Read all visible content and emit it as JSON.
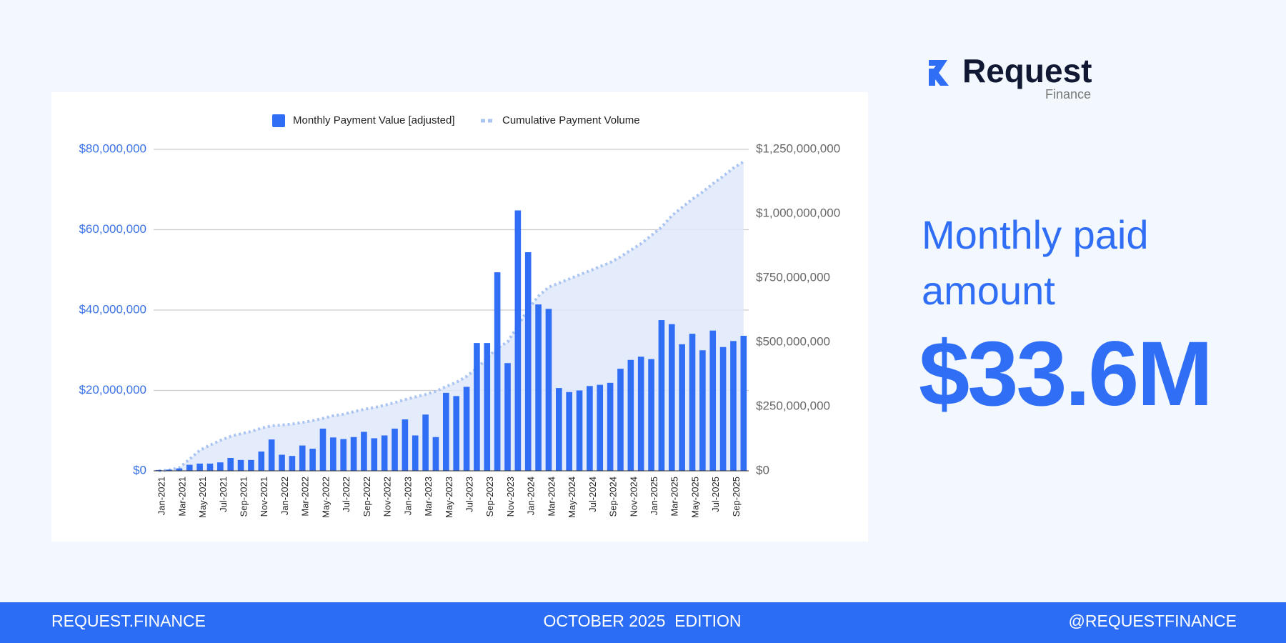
{
  "header": {
    "logo": "Request",
    "logo_sub": "Finance"
  },
  "headline": {
    "label": "Monthly paid amount",
    "value": "$33.6M"
  },
  "footer": {
    "left": "REQUEST.FINANCE",
    "center": "OCTOBER 2025  EDITION",
    "right": "@REQUESTFINANCE"
  },
  "chart_data": {
    "type": "bar",
    "categories": [
      "Jan-2021",
      null,
      "Mar-2021",
      null,
      "May-2021",
      null,
      "Jul-2021",
      null,
      "Sep-2021",
      null,
      "Nov-2021",
      null,
      "Jan-2022",
      null,
      "Mar-2022",
      null,
      "May-2022",
      null,
      "Jul-2022",
      null,
      "Sep-2022",
      null,
      "Nov-2022",
      null,
      "Jan-2023",
      null,
      "Mar-2023",
      null,
      "May-2023",
      null,
      "Jul-2023",
      null,
      "Sep-2023",
      null,
      "Nov-2023",
      null,
      "Jan-2024",
      null,
      "Mar-2024",
      null,
      "May-2024",
      null,
      "Jul-2024",
      null,
      "Sep-2024",
      null,
      "Nov-2024",
      null,
      "Jan-2025",
      null,
      "Mar-2025",
      null,
      "May-2025",
      null,
      "Jul-2025",
      null,
      "Sep-2025",
      null
    ],
    "series": [
      {
        "name": "Monthly Payment Value [adjusted]",
        "color": "#2f6ef5",
        "values": [
          200000,
          300000,
          600000,
          1500000,
          1800000,
          1800000,
          2100000,
          3200000,
          2700000,
          2700000,
          4800000,
          7800000,
          4000000,
          3700000,
          6300000,
          5500000,
          10500000,
          8300000,
          7900000,
          8400000,
          9700000,
          8100000,
          8800000,
          10500000,
          12800000,
          8800000,
          14000000,
          8400000,
          19400000,
          18600000,
          20900000,
          31800000,
          31800000,
          49400000,
          26800000,
          64800000,
          54400000,
          41400000,
          40300000,
          20600000,
          19600000,
          20000000,
          21100000,
          21400000,
          21900000,
          25400000,
          27600000,
          28400000,
          27800000,
          37500000,
          36500000,
          31500000,
          34100000,
          30000000,
          34900000,
          30800000,
          32300000,
          33600000
        ]
      },
      {
        "name": "Cumulative Payment Volume",
        "color": "#a9c4f0",
        "axis": "y2",
        "values": [
          0,
          3000000,
          12000000,
          45000000,
          80000000,
          100000000,
          118000000,
          134000000,
          144000000,
          153000000,
          166000000,
          175000000,
          178000000,
          182000000,
          188000000,
          195000000,
          204000000,
          214000000,
          220000000,
          230000000,
          239000000,
          246000000,
          255000000,
          265000000,
          277000000,
          287000000,
          297000000,
          309000000,
          328000000,
          344000000,
          367000000,
          399000000,
          437000000,
          478000000,
          501000000,
          564000000,
          628000000,
          679000000,
          714000000,
          730000000,
          746000000,
          762000000,
          778000000,
          794000000,
          810000000,
          832000000,
          858000000,
          883000000,
          915000000,
          947000000,
          992000000,
          1024000000,
          1056000000,
          1084000000,
          1116000000,
          1145000000,
          1177000000,
          1202000000
        ]
      }
    ],
    "ylim": [
      0,
      80000000
    ],
    "yticks": [
      {
        "value": 0,
        "label": "$0"
      },
      {
        "value": 20000000,
        "label": "$20,000,000"
      },
      {
        "value": 40000000,
        "label": "$40,000,000"
      },
      {
        "value": 60000000,
        "label": "$60,000,000"
      },
      {
        "value": 80000000,
        "label": "$80,000,000"
      }
    ],
    "y2lim": [
      0,
      1250000000
    ],
    "y2ticks": [
      {
        "value": 0,
        "label": "$0"
      },
      {
        "value": 250000000,
        "label": "$250,000,000"
      },
      {
        "value": 500000000,
        "label": "$500,000,000"
      },
      {
        "value": 750000000,
        "label": "$750,000,000"
      },
      {
        "value": 1000000000,
        "label": "$1,000,000,000"
      },
      {
        "value": 1250000000,
        "label": "$1,250,000,000"
      }
    ],
    "grid": true,
    "legend": "top"
  }
}
